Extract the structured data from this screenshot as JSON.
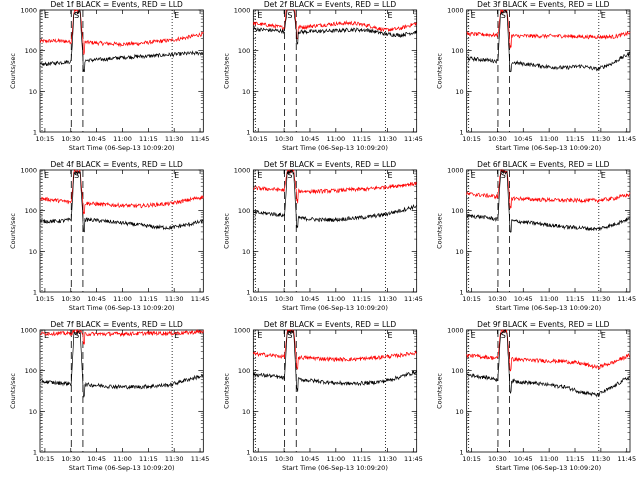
{
  "chart_data": [
    {
      "title": "Det 1f BLACK = Events, RED = LLD",
      "xlabel": "Start Time (06-Sep-13 10:09:20)",
      "ylabel": "Counts/sec",
      "events_base": [
        45,
        50,
        55,
        58,
        62,
        68,
        72,
        75,
        80,
        85,
        88
      ],
      "lld_base": [
        170,
        175,
        165,
        160,
        150,
        145,
        150,
        165,
        180,
        210,
        260
      ],
      "events_peak": 900,
      "lld_peak": 950
    },
    {
      "title": "Det 2f BLACK = Events, RED = LLD",
      "xlabel": "Start Time (06-Sep-13 10:09:20)",
      "ylabel": "Counts/sec",
      "events_base": [
        340,
        320,
        300,
        290,
        300,
        310,
        330,
        320,
        260,
        240,
        290
      ],
      "lld_base": [
        470,
        420,
        360,
        380,
        420,
        460,
        480,
        420,
        320,
        350,
        470
      ],
      "events_peak": 1100,
      "lld_peak": 2600
    },
    {
      "title": "Det 3f BLACK = Events, RED = LLD",
      "xlabel": "Start Time (06-Sep-13 10:09:20)",
      "ylabel": "Counts/sec",
      "events_base": [
        65,
        60,
        55,
        50,
        45,
        40,
        38,
        42,
        35,
        50,
        85
      ],
      "lld_base": [
        260,
        250,
        240,
        230,
        230,
        230,
        230,
        220,
        220,
        220,
        270
      ],
      "events_peak": 900,
      "lld_peak": 950
    },
    {
      "title": "Det 4f BLACK = Events, RED = LLD",
      "xlabel": "Start Time (06-Sep-13 10:09:20)",
      "ylabel": "Counts/sec",
      "events_base": [
        55,
        55,
        60,
        60,
        55,
        50,
        45,
        40,
        38,
        45,
        55
      ],
      "lld_base": [
        200,
        180,
        160,
        150,
        140,
        135,
        130,
        140,
        150,
        180,
        220
      ],
      "events_peak": 850,
      "lld_peak": 950
    },
    {
      "title": "Det 5f BLACK = Events, RED = LLD",
      "xlabel": "Start Time (06-Sep-13 10:09:20)",
      "ylabel": "Counts/sec",
      "events_base": [
        90,
        85,
        75,
        65,
        60,
        60,
        65,
        70,
        80,
        100,
        130
      ],
      "lld_base": [
        360,
        340,
        320,
        300,
        300,
        310,
        330,
        340,
        380,
        420,
        470
      ],
      "events_peak": 900,
      "lld_peak": 950
    },
    {
      "title": "Det 6f BLACK = Events, RED = LLD",
      "xlabel": "Start Time (06-Sep-13 10:09:20)",
      "ylabel": "Counts/sec",
      "events_base": [
        75,
        70,
        60,
        55,
        50,
        45,
        40,
        38,
        35,
        45,
        65
      ],
      "lld_base": [
        260,
        240,
        220,
        200,
        190,
        185,
        180,
        180,
        180,
        200,
        250
      ],
      "events_peak": 900,
      "lld_peak": 950
    },
    {
      "title": "Det 7f BLACK = Events, RED = LLD",
      "xlabel": "Start Time (06-Sep-13 10:09:20)",
      "ylabel": "Counts/sec",
      "events_base": [
        55,
        50,
        48,
        45,
        42,
        40,
        40,
        42,
        45,
        60,
        75
      ],
      "lld_base": [
        820,
        830,
        820,
        800,
        800,
        810,
        820,
        840,
        830,
        860,
        920
      ],
      "events_peak": 850,
      "lld_peak": 950
    },
    {
      "title": "Det 8f BLACK = Events, RED = LLD",
      "xlabel": "Start Time (06-Sep-13 10:09:20)",
      "ylabel": "Counts/sec",
      "events_base": [
        80,
        75,
        65,
        60,
        55,
        50,
        48,
        50,
        55,
        70,
        95
      ],
      "lld_base": [
        260,
        240,
        220,
        210,
        200,
        190,
        190,
        200,
        220,
        240,
        280
      ],
      "events_peak": 900,
      "lld_peak": 950
    },
    {
      "title": "Det 9f BLACK = Events, RED = LLD",
      "xlabel": "Start Time (06-Sep-13 10:09:20)",
      "ylabel": "Counts/sec",
      "events_base": [
        80,
        70,
        60,
        55,
        50,
        45,
        40,
        30,
        25,
        40,
        70
      ],
      "lld_base": [
        240,
        220,
        200,
        190,
        180,
        175,
        170,
        150,
        120,
        160,
        240
      ],
      "events_peak": 900,
      "lld_peak": 950
    }
  ],
  "shared": {
    "type": "line",
    "xticks": [
      "10:15",
      "10:30",
      "10:45",
      "11:00",
      "11:15",
      "11:30",
      "11:45"
    ],
    "yticks": [
      "1",
      "10",
      "100",
      "1000"
    ],
    "ylim": [
      1,
      1000
    ],
    "y_scale": "log",
    "markers": {
      "e_left": "E",
      "s": "S",
      "e_right": "E"
    },
    "colors": {
      "events": "#000000",
      "lld": "#ff0000"
    }
  }
}
